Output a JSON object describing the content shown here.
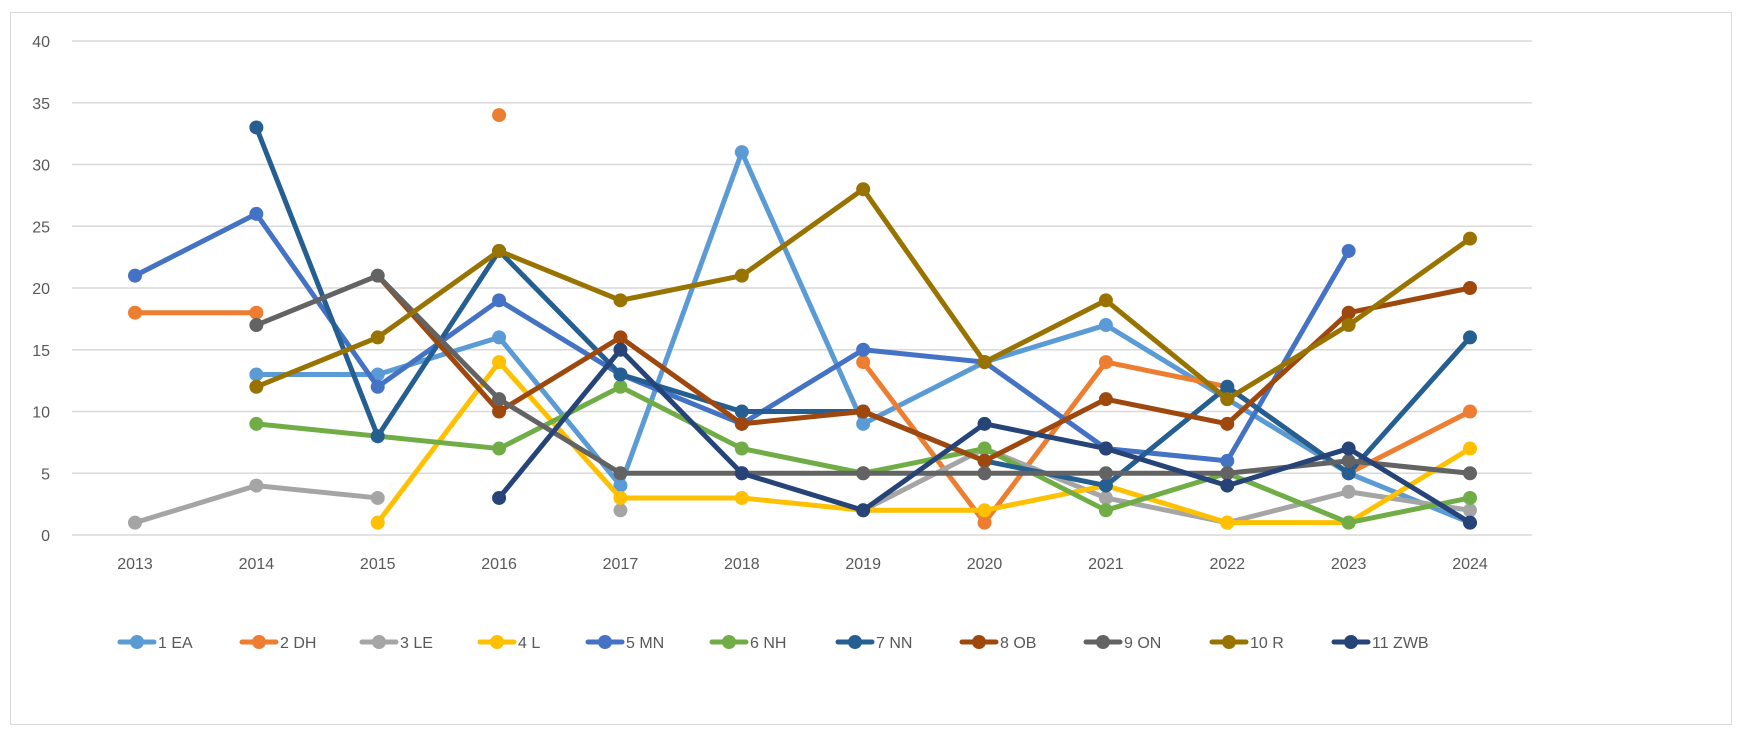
{
  "chart_data": {
    "type": "line",
    "title": "",
    "xlabel": "",
    "ylabel": "",
    "ylim": [
      0,
      40
    ],
    "yticks": [
      0,
      5,
      10,
      15,
      20,
      25,
      30,
      35,
      40
    ],
    "grid": true,
    "legend_position": "bottom",
    "categories": [
      "2013",
      "2014",
      "2015",
      "2016",
      "2017",
      "2018",
      "2019",
      "2020",
      "2021",
      "2022",
      "2023",
      "2024"
    ],
    "series": [
      {
        "name": "1 EA",
        "color": "#5B9BD5",
        "values": [
          null,
          13,
          13,
          16,
          4,
          31,
          9,
          14,
          17,
          11,
          5,
          1
        ]
      },
      {
        "name": "2 DH",
        "color": "#ED7D31",
        "values": [
          18,
          18,
          null,
          34,
          null,
          null,
          14,
          1,
          14,
          12,
          5,
          10
        ]
      },
      {
        "name": "3 LE",
        "color": "#A5A5A5",
        "values": [
          1,
          4,
          3,
          null,
          2,
          null,
          2,
          7,
          3,
          1,
          3.5,
          2
        ]
      },
      {
        "name": "4 L",
        "color": "#FFC000",
        "values": [
          null,
          null,
          1,
          14,
          3,
          3,
          2,
          2,
          4,
          1,
          1,
          7
        ]
      },
      {
        "name": "5 MN",
        "color": "#4472C4",
        "values": [
          21,
          26,
          12,
          19,
          13,
          9,
          15,
          14,
          7,
          6,
          23,
          null
        ]
      },
      {
        "name": "6 NH",
        "color": "#70AD47",
        "values": [
          null,
          9,
          8,
          7,
          12,
          7,
          5,
          7,
          2,
          5,
          1,
          3
        ]
      },
      {
        "name": "7 NN",
        "color": "#255E91",
        "values": [
          null,
          33,
          8,
          23,
          13,
          10,
          10,
          6,
          4,
          12,
          5,
          16
        ]
      },
      {
        "name": "8 OB",
        "color": "#9E480E",
        "values": [
          null,
          null,
          21,
          10,
          16,
          9,
          10,
          6,
          11,
          9,
          18,
          20
        ]
      },
      {
        "name": "9 ON",
        "color": "#636363",
        "values": [
          null,
          17,
          21,
          11,
          5,
          5,
          5,
          5,
          5,
          5,
          6,
          5
        ]
      },
      {
        "name": "10 R",
        "color": "#997300",
        "values": [
          null,
          12,
          16,
          23,
          19,
          21,
          28,
          14,
          19,
          11,
          17,
          24
        ]
      },
      {
        "name": "11 ZWB",
        "color": "#264478",
        "values": [
          null,
          null,
          null,
          3,
          15,
          5,
          2,
          9,
          7,
          4,
          7,
          1
        ]
      }
    ]
  }
}
